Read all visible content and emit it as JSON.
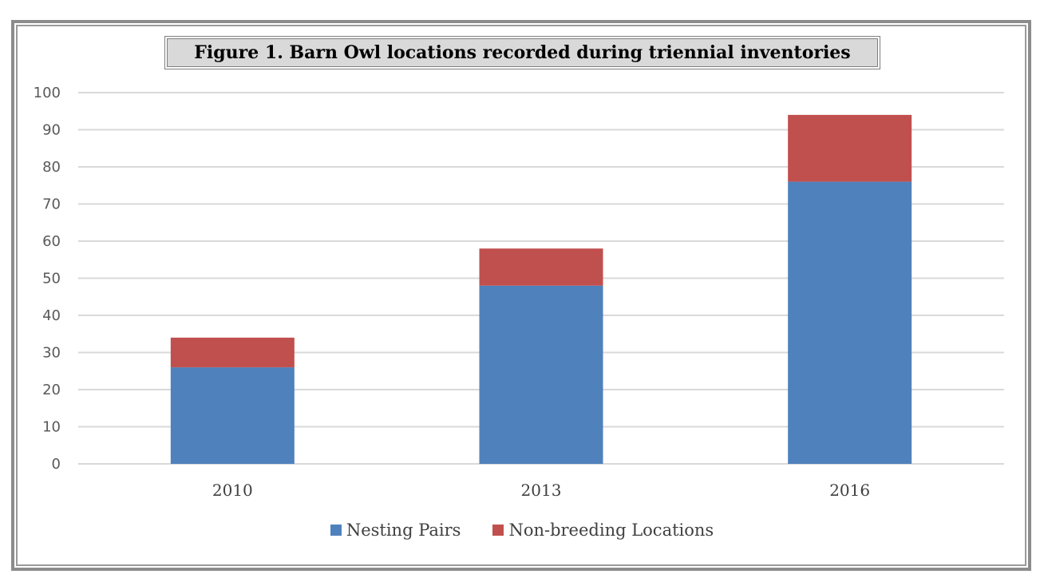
{
  "colors": {
    "nesting": "#4f81bd",
    "nonbreeding": "#c0504d",
    "grid": "#d9d9d9"
  },
  "chart_data": {
    "type": "bar",
    "stacked": true,
    "title": "Figure 1.  Barn Owl locations recorded during triennial inventories",
    "categories": [
      "2010",
      "2013",
      "2016"
    ],
    "series": [
      {
        "name": "Nesting Pairs",
        "values": [
          26,
          48,
          76
        ]
      },
      {
        "name": "Non-breeding Locations",
        "values": [
          8,
          10,
          18
        ]
      }
    ],
    "ylim": [
      0,
      100
    ],
    "yticks": [
      "0",
      "10",
      "20",
      "30",
      "40",
      "50",
      "60",
      "70",
      "80",
      "90",
      "100"
    ],
    "grid": true,
    "legend": "bottom"
  }
}
